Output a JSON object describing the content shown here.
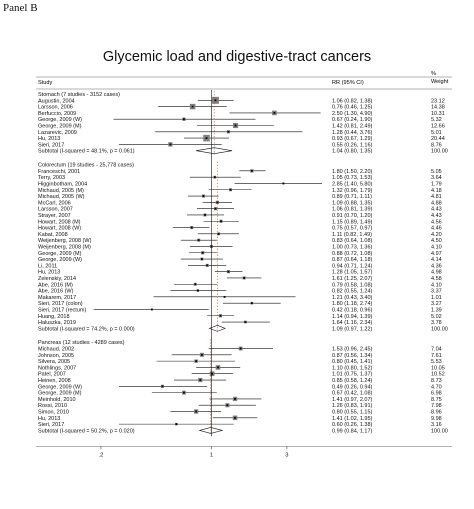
{
  "panel_label": "Panel B",
  "chart_data": {
    "type": "forest",
    "title": "Glycemic load and digestive-tract cancers",
    "headers": {
      "study": "Study",
      "rr": "RR (95% CI)",
      "weight_top": "%",
      "weight_bottom": "Weight"
    },
    "x_ticks": [
      {
        "value": 0.2,
        "label": ".2"
      },
      {
        "value": 1,
        "label": "1"
      },
      {
        "value": 3,
        "label": "3"
      }
    ],
    "x_range": [
      0.08,
      5.0
    ],
    "x_scale": "log",
    "groups": [
      {
        "label": "Stomach (7 studies - 3152 cases)",
        "studies": [
          {
            "name": "Augustin, 2004",
            "rr": 1.06,
            "lo": 0.82,
            "hi": 1.38,
            "ci": "1.06 (0.82, 1.38)",
            "weight": "23.12"
          },
          {
            "name": "Larsson, 2006",
            "rr": 0.76,
            "lo": 0.46,
            "hi": 1.25,
            "ci": "0.76 (0.46, 1.25)",
            "weight": "14.38"
          },
          {
            "name": "Berfuccio, 2009",
            "rr": 2.5,
            "lo": 1.3,
            "hi": 4.9,
            "ci": "2.50 (1.30, 4.90)",
            "weight": "10.31"
          },
          {
            "name": "George, 2009 (W)",
            "rr": 0.67,
            "lo": 0.24,
            "hi": 1.9,
            "ci": "0.67 (0.24, 1.90)",
            "weight": "5.32"
          },
          {
            "name": "George, 2009 (M)",
            "rr": 1.42,
            "lo": 0.81,
            "hi": 2.49,
            "ci": "1.42 (0.81, 2.49)",
            "weight": "12.66"
          },
          {
            "name": "Lazarevic, 2009",
            "rr": 1.28,
            "lo": 0.44,
            "hi": 3.76,
            "ci": "1.28 (0.44, 3.76)",
            "weight": "5.01"
          },
          {
            "name": "Hu, 2013",
            "rr": 0.93,
            "lo": 0.67,
            "hi": 1.29,
            "ci": "0.93 (0.67, 1.29)",
            "weight": "20.44"
          },
          {
            "name": "Sieri, 2017",
            "rr": 0.55,
            "lo": 0.26,
            "hi": 1.16,
            "ci": "0.55 (0.26, 1.16)",
            "weight": "8.76"
          }
        ],
        "subtotal": {
          "label": "Subtotal  (I-squared = 48.1%, p = 0.061)",
          "rr": 1.04,
          "lo": 0.8,
          "hi": 1.35,
          "ci": "1.04 (0.80, 1.35)",
          "weight": "100.00"
        }
      },
      {
        "label": "Colorectum (19 studies - 25,778 cases)",
        "studies": [
          {
            "name": "Franceschi, 2001",
            "rr": 1.8,
            "lo": 1.5,
            "hi": 2.2,
            "ci": "1.80 (1.50, 2.20)",
            "weight": "5.05"
          },
          {
            "name": "Terry, 2003",
            "rr": 1.05,
            "lo": 0.73,
            "hi": 1.53,
            "ci": "1.05 (0.73, 1.53)",
            "weight": "3.64"
          },
          {
            "name": "Higginbotham, 2004",
            "rr": 2.85,
            "lo": 1.4,
            "hi": 5.8,
            "ci": "2.85 (1.40, 5.80)",
            "weight": "1.79"
          },
          {
            "name": "Michaud, 2005 (M)",
            "rr": 1.32,
            "lo": 0.96,
            "hi": 1.79,
            "ci": "1.32 (0.96, 1.79)",
            "weight": "4.18"
          },
          {
            "name": "Michaud, 2005 (W)",
            "rr": 0.89,
            "lo": 0.71,
            "hi": 1.11,
            "ci": "0.89 (0.71, 1.11)",
            "weight": "4.81"
          },
          {
            "name": "McCarl, 2006",
            "rr": 1.09,
            "lo": 0.88,
            "hi": 1.35,
            "ci": "1.09 (0.88, 1.35)",
            "weight": "4.88"
          },
          {
            "name": "Larsson, 2007",
            "rr": 1.06,
            "lo": 0.81,
            "hi": 1.39,
            "ci": "1.06 (0.81, 1.39)",
            "weight": "4.43"
          },
          {
            "name": "Strayer, 2007",
            "rr": 0.91,
            "lo": 0.7,
            "hi": 1.2,
            "ci": "0.91 (0.70, 1.20)",
            "weight": "4.43"
          },
          {
            "name": "Howart, 2008 (M)",
            "rr": 1.15,
            "lo": 0.89,
            "hi": 1.49,
            "ci": "1.15 (0.89, 1.49)",
            "weight": "4.56"
          },
          {
            "name": "Howart, 2008 (W)",
            "rr": 0.75,
            "lo": 0.57,
            "hi": 0.97,
            "ci": "0.75 (0.57, 0.97)",
            "weight": "4.46"
          },
          {
            "name": "Kabat, 2008",
            "rr": 1.11,
            "lo": 0.82,
            "hi": 1.49,
            "ci": "1.11 (0.82, 1.49)",
            "weight": "4.20"
          },
          {
            "name": "Weijenberg, 2008 (W)",
            "rr": 0.83,
            "lo": 0.64,
            "hi": 1.08,
            "ci": "0.83 (0.64, 1.08)",
            "weight": "4.50"
          },
          {
            "name": "Weijenberg, 2008 (M)",
            "rr": 1.0,
            "lo": 0.73,
            "hi": 1.36,
            "ci": "1.00 (0.73, 1.36)",
            "weight": "4.10"
          },
          {
            "name": "George, 2009 (M)",
            "rr": 0.88,
            "lo": 0.72,
            "hi": 1.08,
            "ci": "0.88 (0.72, 1.08)",
            "weight": "4.97"
          },
          {
            "name": "George, 2009 (W)",
            "rr": 0.87,
            "lo": 0.64,
            "hi": 1.18,
            "ci": "0.87 (0.64, 1.18)",
            "weight": "4.14"
          },
          {
            "name": "Li, 2011",
            "rr": 0.94,
            "lo": 0.71,
            "hi": 1.24,
            "ci": "0.94 (0.71, 1.24)",
            "weight": "4.36"
          },
          {
            "name": "Hu, 2013",
            "rr": 1.28,
            "lo": 1.05,
            "hi": 1.57,
            "ci": "1.28 (1.05, 1.57)",
            "weight": "4.98"
          },
          {
            "name": "Zelenskiy, 2014",
            "rr": 1.61,
            "lo": 1.25,
            "hi": 2.07,
            "ci": "1.61 (1.25, 2.07)",
            "weight": "4.58"
          },
          {
            "name": "Abe, 2016 (M)",
            "rr": 0.79,
            "lo": 0.58,
            "hi": 1.08,
            "ci": "0.79 (0.58, 1.08)",
            "weight": "4.10"
          },
          {
            "name": "Abe, 2016 (W)",
            "rr": 0.82,
            "lo": 0.55,
            "hi": 1.24,
            "ci": "0.82 (0.55, 1.24)",
            "weight": "3.37"
          },
          {
            "name": "Makarem, 2017",
            "rr": 1.21,
            "lo": 0.43,
            "hi": 3.4,
            "ci": "1.21 (0.43, 3.40)",
            "weight": "1.01"
          },
          {
            "name": "Sieri, 2017 (colon)",
            "rr": 1.8,
            "lo": 1.18,
            "hi": 2.74,
            "ci": "1.80 (1.18, 2.74)",
            "weight": "3.27"
          },
          {
            "name": "Sieri, 2017 (rectum)",
            "rr": 0.42,
            "lo": 0.18,
            "hi": 0.96,
            "ci": "0.42 (0.18, 0.96)",
            "weight": "1.39"
          },
          {
            "name": "Huang, 2018",
            "rr": 1.14,
            "lo": 0.94,
            "hi": 1.39,
            "ci": "1.14 (0.94, 1.39)",
            "weight": "5.02"
          },
          {
            "name": "Haluszka, 2019",
            "rr": 1.64,
            "lo": 1.16,
            "hi": 2.34,
            "ci": "1.64 (1.16, 2.34)",
            "weight": "3.78"
          }
        ],
        "subtotal": {
          "label": "Subtotal  (I-squared = 74.2%, p = 0.000)",
          "rr": 1.09,
          "lo": 0.97,
          "hi": 1.22,
          "ci": "1.09 (0.97, 1.22)",
          "weight": "100.00"
        }
      },
      {
        "label": "Pancreas (12 studies - 4289 cases)",
        "studies": [
          {
            "name": "Michaud, 2002",
            "rr": 1.53,
            "lo": 0.96,
            "hi": 2.45,
            "ci": "1.53 (0.96, 2.45)",
            "weight": "7.04"
          },
          {
            "name": "Johnson, 2005",
            "rr": 0.87,
            "lo": 0.56,
            "hi": 1.34,
            "ci": "0.87 (0.56, 1.34)",
            "weight": "7.61"
          },
          {
            "name": "Silvera, 2005",
            "rr": 0.8,
            "lo": 0.45,
            "hi": 1.41,
            "ci": "0.80 (0.45, 1.41)",
            "weight": "5.53"
          },
          {
            "name": "Nothlings, 2007",
            "rr": 1.1,
            "lo": 0.8,
            "hi": 1.52,
            "ci": "1.10 (0.80, 1.52)",
            "weight": "10.05"
          },
          {
            "name": "Patel, 2007",
            "rr": 1.01,
            "lo": 0.75,
            "hi": 1.37,
            "ci": "1.01 (0.75, 1.37)",
            "weight": "10.52"
          },
          {
            "name": "Heinen, 2008",
            "rr": 0.85,
            "lo": 0.58,
            "hi": 1.24,
            "ci": "0.85 (0.58, 1.24)",
            "weight": "8.73"
          },
          {
            "name": "George, 2009 (W)",
            "rr": 0.49,
            "lo": 0.26,
            "hi": 0.94,
            "ci": "0.49 (0.26, 0.94)",
            "weight": "4.70"
          },
          {
            "name": "George, 2009 (M)",
            "rr": 0.67,
            "lo": 0.42,
            "hi": 1.08,
            "ci": "0.67 (0.42, 1.08)",
            "weight": "6.98"
          },
          {
            "name": "Meinhold, 2010",
            "rr": 1.41,
            "lo": 0.97,
            "hi": 2.07,
            "ci": "1.41 (0.97, 2.07)",
            "weight": "8.75"
          },
          {
            "name": "Rossi, 2010",
            "rr": 1.26,
            "lo": 0.83,
            "hi": 1.91,
            "ci": "1.26 (0.83, 1.91)",
            "weight": "7.98"
          },
          {
            "name": "Simon, 2010",
            "rr": 0.8,
            "lo": 0.55,
            "hi": 1.15,
            "ci": "0.80 (0.55, 1.15)",
            "weight": "8.96"
          },
          {
            "name": "Hu, 2013",
            "rr": 1.41,
            "lo": 1.02,
            "hi": 1.95,
            "ci": "1.41 (1.02, 1.95)",
            "weight": "9.98"
          },
          {
            "name": "Sieri, 2017",
            "rr": 0.6,
            "lo": 0.26,
            "hi": 1.38,
            "ci": "0.60 (0.26, 1.38)",
            "weight": "3.16"
          }
        ],
        "subtotal": {
          "label": "Subtotal  (I-squared = 50.2%, p = 0.020)",
          "rr": 0.99,
          "lo": 0.84,
          "hi": 1.17,
          "ci": "0.99 (0.84, 1.17)",
          "weight": "100.00"
        }
      }
    ]
  }
}
